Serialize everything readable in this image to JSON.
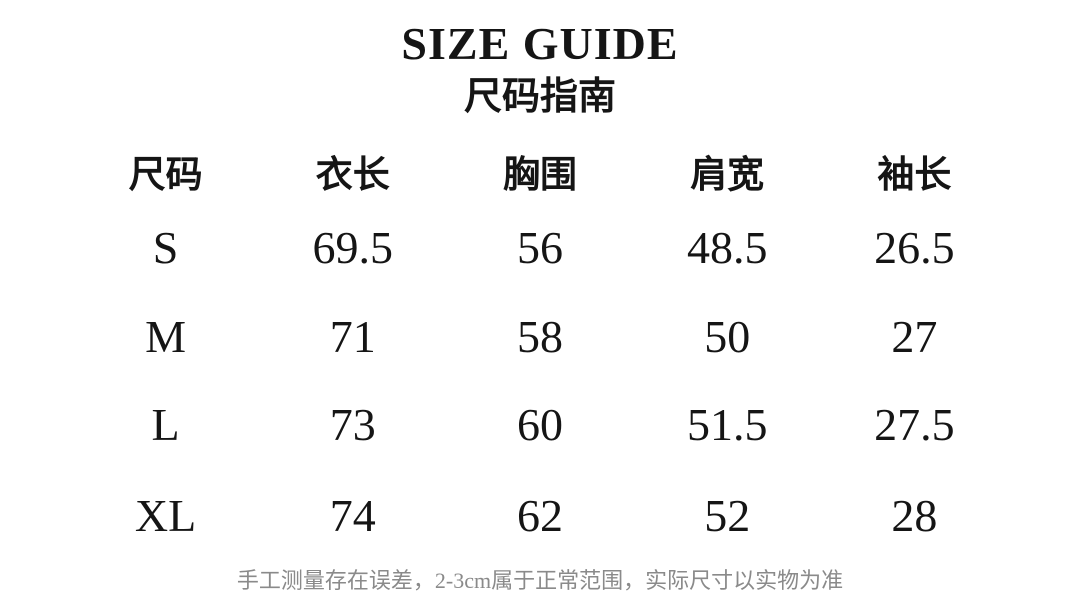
{
  "title": "SIZE GUIDE",
  "subtitle": "尺码指南",
  "table": {
    "headers": [
      "尺码",
      "衣长",
      "胸围",
      "肩宽",
      "袖长"
    ],
    "rows": [
      {
        "size": "S",
        "values": [
          "69.5",
          "56",
          "48.5",
          "26.5"
        ]
      },
      {
        "size": "M",
        "values": [
          "71",
          "58",
          "50",
          "27"
        ]
      },
      {
        "size": "L",
        "values": [
          "73",
          "60",
          "51.5",
          "27.5"
        ]
      },
      {
        "size": "XL",
        "values": [
          "74",
          "62",
          "52",
          "28"
        ]
      }
    ]
  },
  "footer": "手工测量存在误差，2-3cm属于正常范围，实际尺寸以实物为准",
  "colors": {
    "background": "#ffffff",
    "text": "#151515",
    "footer_text": "#8a8a8a"
  }
}
